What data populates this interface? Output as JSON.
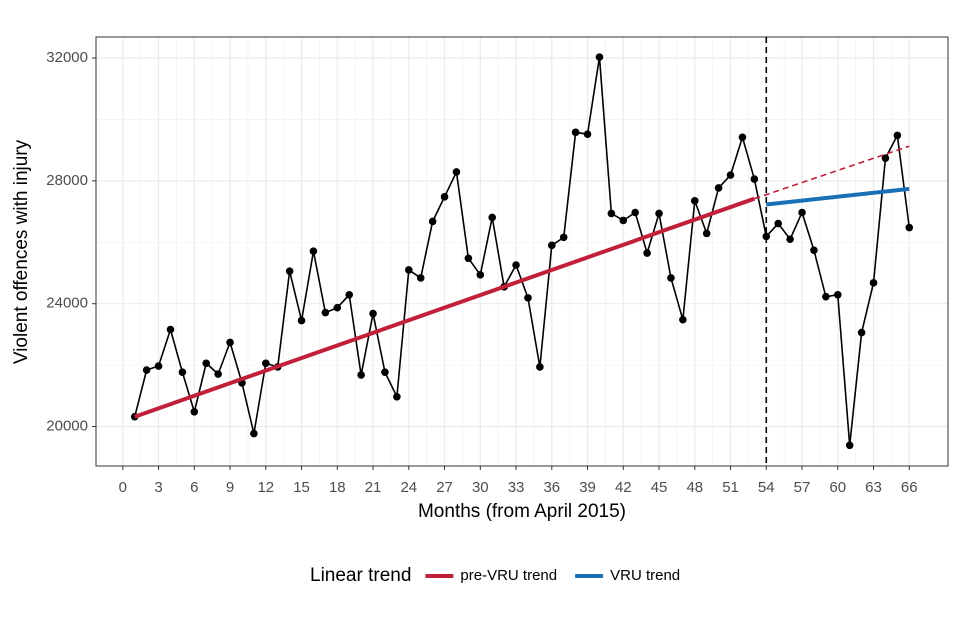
{
  "chart_data": {
    "type": "line",
    "x_label": "Months (from April 2015)",
    "y_label": "Violent offences with injury",
    "x": [
      1,
      2,
      3,
      4,
      5,
      6,
      7,
      8,
      9,
      10,
      11,
      12,
      13,
      14,
      15,
      16,
      17,
      18,
      19,
      20,
      21,
      22,
      23,
      24,
      25,
      26,
      27,
      28,
      29,
      30,
      31,
      32,
      33,
      34,
      35,
      36,
      37,
      38,
      39,
      40,
      41,
      42,
      43,
      44,
      45,
      46,
      47,
      48,
      49,
      50,
      51,
      52,
      53,
      54,
      55,
      56,
      57,
      58,
      59,
      60,
      61,
      62,
      63,
      64,
      65,
      66
    ],
    "values": [
      20320,
      21840,
      21970,
      23160,
      21770,
      20480,
      22060,
      21710,
      22740,
      21420,
      19770,
      22060,
      21940,
      25060,
      23450,
      25710,
      23710,
      23870,
      24290,
      21680,
      23680,
      21770,
      20970,
      25100,
      24840,
      26680,
      27480,
      28290,
      25480,
      24940,
      26810,
      24550,
      25260,
      24190,
      21940,
      25900,
      26160,
      29580,
      29520,
      32030,
      26940,
      26710,
      26970,
      25650,
      26940,
      24840,
      23480,
      27350,
      26290,
      27770,
      28190,
      29420,
      28060,
      26190,
      26610,
      26100,
      26970,
      25740,
      24230,
      24290,
      19390,
      23060,
      24680,
      28740,
      29480,
      26480
    ],
    "color": "#000000",
    "trends": [
      {
        "name": "pre-VRU trend",
        "color": "#c0203a",
        "x": [
          1,
          53
        ],
        "values": [
          20320,
          27420
        ],
        "projection": {
          "x": [
            53,
            66
          ],
          "values": [
            27420,
            29130
          ]
        }
      },
      {
        "name": "VRU trend",
        "color": "#1a6fb5",
        "x": [
          54,
          66
        ],
        "values": [
          27230,
          27740
        ]
      }
    ],
    "legend_title": "Linear trend",
    "legend_position": "bottom",
    "vline": 54,
    "xlim": [
      -2.25,
      69.25
    ],
    "ylim": [
      18715,
      32685
    ],
    "xticks": [
      0,
      3,
      6,
      9,
      12,
      15,
      18,
      21,
      24,
      27,
      30,
      33,
      36,
      39,
      42,
      45,
      48,
      51,
      54,
      57,
      60,
      63,
      66
    ],
    "yticks": [
      20000,
      24000,
      28000,
      32000
    ],
    "grid": true
  }
}
